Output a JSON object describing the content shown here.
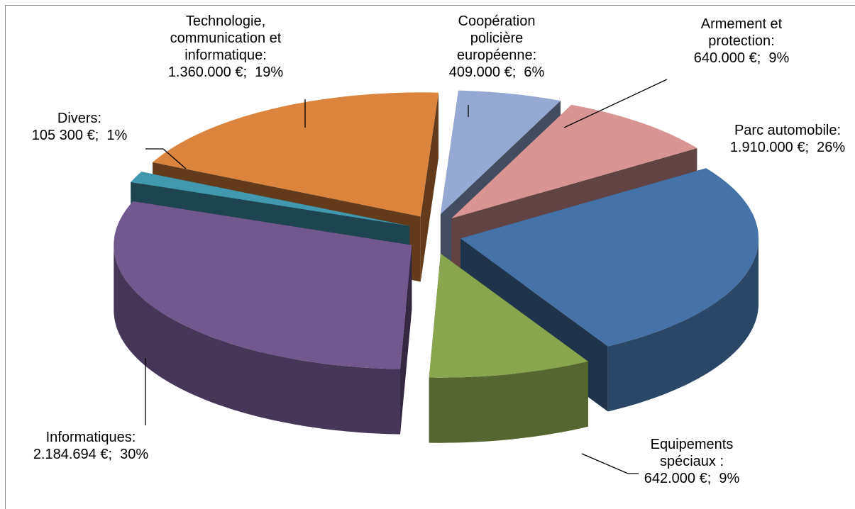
{
  "chart_data": {
    "type": "pie3d",
    "categories": [
      "Coopération policière européenne:",
      "Armement et protection:",
      "Parc automobile:",
      "Equipements spéciaux :",
      "Informatiques:",
      "Divers:",
      "Technologie, communication et informatique:"
    ],
    "values": [
      409000,
      640000,
      1910000,
      642000,
      2184694,
      105300,
      1360000
    ],
    "value_labels": [
      "409.000 €;",
      "640.000 €;",
      "1.910.000 €;",
      "642.000 €;",
      "2.184.694 €;",
      "105 300 €;",
      "1.360.000 €;"
    ],
    "percents": [
      6,
      9,
      26,
      9,
      30,
      1,
      19
    ],
    "percent_labels": [
      "6%",
      "9%",
      "26%",
      "9%",
      "30%",
      "1%",
      "19%"
    ],
    "colors": [
      "#95a9d4",
      "#d99594",
      "#4572a7",
      "#89a54e",
      "#71588f",
      "#4198af",
      "#db843d"
    ]
  }
}
